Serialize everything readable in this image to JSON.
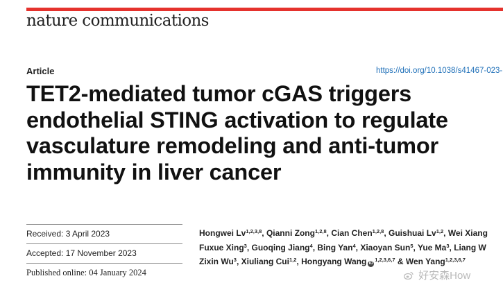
{
  "header": {
    "journal": "nature communications",
    "brand_color": "#e5322d",
    "article_type": "Article",
    "doi": "https://doi.org/10.1038/s41467-023-"
  },
  "title_lines": [
    "TET2-mediated tumor cGAS triggers",
    "endothelial STING activation to regulate",
    "vasculature remodeling and anti-tumor",
    "immunity in liver cancer"
  ],
  "dates": {
    "received": "Received: 3 April 2023",
    "accepted": "Accepted: 17 November 2023",
    "published": "Published online: 04 January 2024"
  },
  "authors": [
    [
      {
        "name": "Hongwei Lv",
        "aff": "1,2,3,8",
        "sep": ", "
      },
      {
        "name": "Qianni Zong",
        "aff": "1,2,8",
        "sep": ", "
      },
      {
        "name": "Cian Chen",
        "aff": "1,2,8",
        "sep": ", "
      },
      {
        "name": "Guishuai Lv",
        "aff": "1,2",
        "sep": ", "
      },
      {
        "name": "Wei Xiang",
        "aff": "",
        "sep": ""
      }
    ],
    [
      {
        "name": "Fuxue Xing",
        "aff": "3",
        "sep": ", "
      },
      {
        "name": "Guoqing Jiang",
        "aff": "4",
        "sep": ", "
      },
      {
        "name": "Bing Yan",
        "aff": "4",
        "sep": ", "
      },
      {
        "name": "Xiaoyan Sun",
        "aff": "5",
        "sep": ", "
      },
      {
        "name": "Yue Ma",
        "aff": "3",
        "sep": ", "
      },
      {
        "name": "Liang W",
        "aff": "",
        "sep": ""
      }
    ],
    [
      {
        "name": "Zixin Wu",
        "aff": "3",
        "sep": ", "
      },
      {
        "name": "Xiuliang Cui",
        "aff": "1,2",
        "sep": ", "
      },
      {
        "name": "Hongyang Wang",
        "aff": "1,2,3,6,7",
        "orcid": true,
        "sep": " "
      },
      {
        "name": "& Wen Yang",
        "aff": "1,2,3,6,7",
        "sep": ""
      }
    ]
  ],
  "orcid_icon": "orcid-icon",
  "watermark": {
    "icon": "weibo-logo-icon",
    "text": "好安森How"
  }
}
